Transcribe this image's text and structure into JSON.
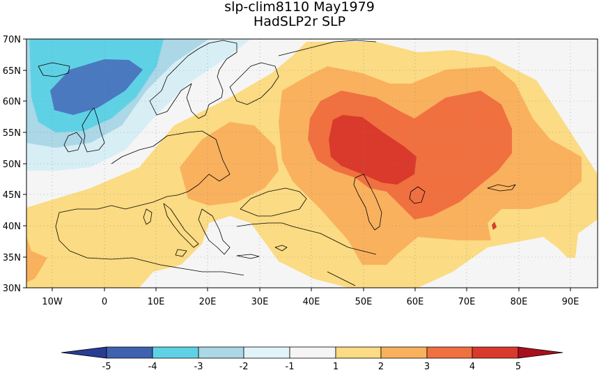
{
  "title": {
    "line1": "slp-clim8110 May1979",
    "line2": "HadSLP2r SLP"
  },
  "map": {
    "projection": "lat-lon",
    "lon_range": [
      -15,
      95
    ],
    "lat_range": [
      30,
      70
    ],
    "grid": "dotted",
    "x_ticks": [
      "10W",
      "0",
      "10E",
      "20E",
      "30E",
      "40E",
      "50E",
      "60E",
      "70E",
      "80E",
      "90E"
    ],
    "y_ticks": [
      "30N",
      "35N",
      "40N",
      "45N",
      "50N",
      "55N",
      "60N",
      "65N",
      "70N"
    ],
    "fill_colors": {
      "neg4_neg3": "#4a79c0",
      "neg3_neg2": "#5fd1e5",
      "neg2_neg1": "#abd7e6",
      "neg1_0": "#d7eef5",
      "zero": "#f5f5f5",
      "p1_p2": "#fbdb83",
      "p2_p3": "#f9b15e",
      "p3_p4": "#f07040",
      "p4_p5": "#d93a2b"
    }
  },
  "colorbar": {
    "labels": [
      "-5",
      "-4",
      "-3",
      "-2",
      "-1",
      "1",
      "2",
      "3",
      "4",
      "5"
    ],
    "colors": [
      "#3e62ae",
      "#5fd1e5",
      "#abd7e6",
      "#e0f4fa",
      "#f5f5f5",
      "#fbdb83",
      "#f9b15e",
      "#f07040",
      "#d93a2b"
    ],
    "low_arrow_color": "#2a3b93",
    "high_arrow_color": "#a8101e"
  }
}
